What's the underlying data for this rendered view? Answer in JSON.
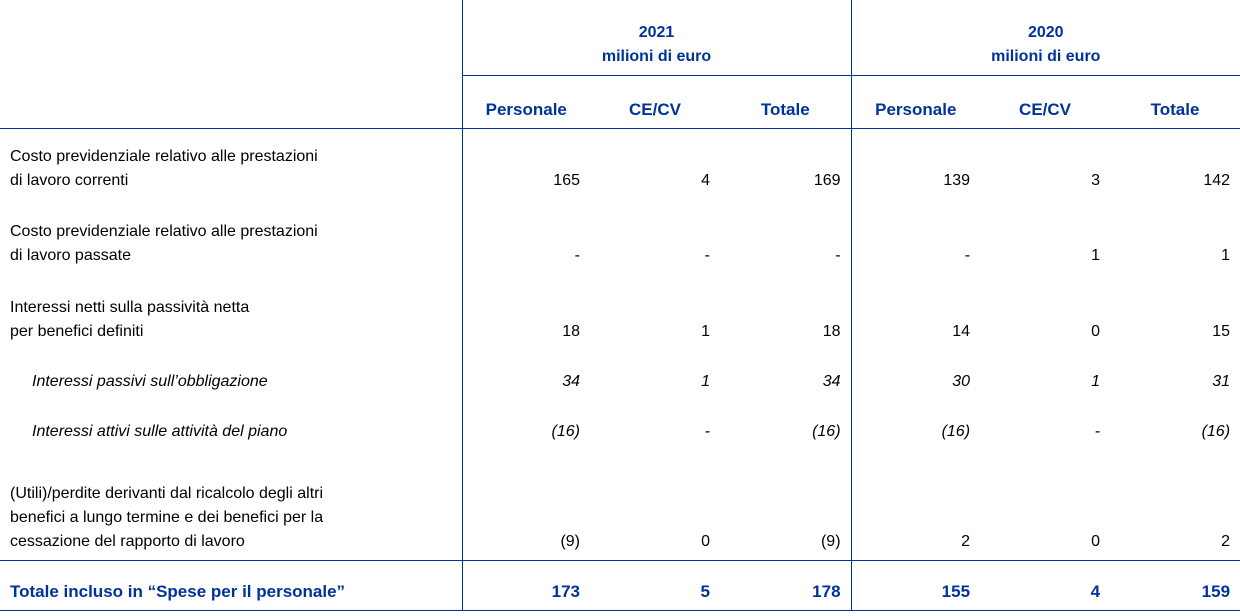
{
  "header": {
    "groups": [
      {
        "year": "2021",
        "unit": "milioni di euro"
      },
      {
        "year": "2020",
        "unit": "milioni di euro"
      }
    ],
    "columns": [
      "Personale",
      "CE/CV",
      "Totale",
      "Personale",
      "CE/CV",
      "Totale"
    ]
  },
  "rows": [
    {
      "label": [
        "Costo previdenziale relativo alle prestazioni",
        "di lavoro correnti"
      ],
      "values": [
        "165",
        "4",
        "169",
        "139",
        "3",
        "142"
      ],
      "italic": false
    },
    {
      "label": [
        "Costo previdenziale relativo alle prestazioni",
        "di lavoro passate"
      ],
      "values": [
        "-",
        "-",
        "-",
        "-",
        "1",
        "1"
      ],
      "italic": false
    },
    {
      "label": [
        "Interessi netti sulla passività netta",
        "per benefici definiti"
      ],
      "values": [
        "18",
        "1",
        "18",
        "14",
        "0",
        "15"
      ],
      "italic": false
    },
    {
      "label": [
        "Interessi passivi sull’obbligazione"
      ],
      "values": [
        "34",
        "1",
        "34",
        "30",
        "1",
        "31"
      ],
      "italic": true
    },
    {
      "label": [
        "Interessi attivi sulle attività del piano"
      ],
      "values": [
        "(16)",
        "-",
        "(16)",
        "(16)",
        "-",
        "(16)"
      ],
      "italic": true
    },
    {
      "label": [
        "(Utili)/perdite derivanti dal ricalcolo degli altri",
        "benefici a lungo termine e dei benefici per la",
        "cessazione del rapporto di lavoro"
      ],
      "values": [
        "(9)",
        "0",
        "(9)",
        "2",
        "0",
        "2"
      ],
      "italic": false
    }
  ],
  "total": {
    "label": "Totale incluso in “Spese per il personale”",
    "values": [
      "173",
      "5",
      "178",
      "155",
      "4",
      "159"
    ]
  }
}
